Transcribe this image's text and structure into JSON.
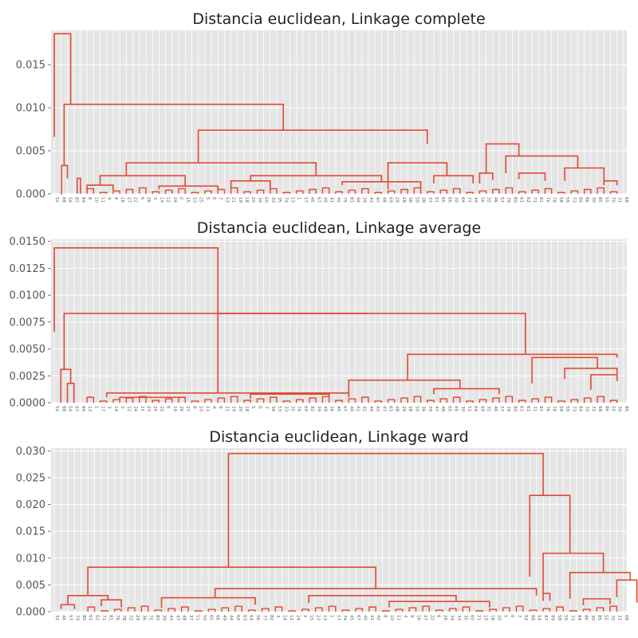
{
  "colors": {
    "background": "#e5e5e5",
    "grid": "#ffffff",
    "link": "#e24a33",
    "text": "#555555",
    "title": "#222222"
  },
  "chart_data": [
    {
      "type": "dendrogram",
      "title": "Distancia euclidean, Linkage complete",
      "xlabel": "",
      "ylabel": "",
      "ylim": [
        0,
        0.019
      ],
      "yticks": [
        0.0,
        0.005,
        0.01,
        0.015
      ],
      "ytick_labels": [
        "0.000",
        "0.005",
        "0.010",
        "0.015"
      ],
      "grid": true,
      "leaves": [
        "52",
        "88",
        "54",
        "87",
        "89",
        "8",
        "10",
        "11",
        "4",
        "9",
        "16",
        "27",
        "22",
        "6",
        "26",
        "3",
        "14",
        "12",
        "24",
        "2",
        "15",
        "23",
        "25",
        "5",
        "0",
        "7",
        "53",
        "21",
        "19",
        "18",
        "20",
        "34",
        "60",
        "33",
        "35",
        "74",
        "13",
        "1",
        "17",
        "45",
        "67",
        "40",
        "41",
        "42",
        "75",
        "83",
        "44",
        "39",
        "43",
        "47",
        "48",
        "69",
        "29",
        "28",
        "36",
        "50",
        "38",
        "37",
        "51",
        "65",
        "66",
        "30",
        "64",
        "77",
        "49",
        "56",
        "32",
        "46",
        "57",
        "79",
        "80",
        "61",
        "62",
        "71",
        "81",
        "76",
        "78",
        "58",
        "59",
        "73",
        "84",
        "86",
        "30",
        "85",
        "55",
        "70",
        "31",
        "68"
      ],
      "links": [
        {
          "x": [
            1,
            1,
            3,
            3
          ],
          "y": [
            0.0066,
            0.0186,
            0.0186,
            0.0104
          ]
        },
        {
          "x": [
            2,
            2,
            3.5,
            3.5
          ],
          "y": [
            0.0034,
            0.0104,
            0.0104,
            0.0073
          ]
        },
        {
          "x": [
            3,
            3,
            4,
            4
          ],
          "y": [
            0.0018,
            0.0034,
            0.0034,
            0.0018
          ]
        },
        {
          "x": [
            3.5,
            3.5,
            6.5,
            6.5
          ],
          "y": [
            0.0035,
            0.0073,
            0.0073,
            0.0058
          ]
        },
        {
          "x": [
            3.5,
            3.5,
            3.6,
            3.6
          ],
          "y": [
            0.002,
            0.0035,
            0.0035,
            0.0025
          ]
        },
        {
          "x": [
            6.5,
            6.5,
            7.2,
            7.2
          ],
          "y": [
            0.0025,
            0.0058,
            0.0058,
            0.0044
          ]
        },
        {
          "x": [
            7.2,
            7.2,
            8,
            8
          ],
          "y": [
            0.003,
            0.0044,
            0.0044,
            0.003
          ]
        },
        {
          "x": [
            3.6,
            3.6,
            4.6,
            4.6
          ],
          "y": [
            0.0012,
            0.0025,
            0.0025,
            0.002
          ]
        },
        {
          "x": [
            3.6,
            3.6,
            4.1,
            4.1
          ],
          "y": [
            0.0006,
            0.0012,
            0.0012,
            0.0008
          ]
        },
        {
          "x": [
            4.6,
            4.6,
            5.4,
            5.4
          ],
          "y": [
            0.0012,
            0.002,
            0.002,
            0.0012
          ]
        },
        {
          "x": [
            6.3,
            6.3,
            6.9,
            6.9
          ],
          "y": [
            0.0015,
            0.0025,
            0.0025,
            0.002
          ]
        },
        {
          "x": [
            7.5,
            7.5,
            8.5,
            8.5
          ],
          "y": [
            0.0012,
            0.003,
            0.003,
            0.0015
          ]
        },
        {
          "x": [
            5,
            5,
            5.3,
            5.3
          ],
          "y": [
            0.0003,
            0.001,
            0.001,
            0.0005
          ]
        },
        {
          "x": [
            5,
            5,
            5.3,
            5.3
          ],
          "y": [
            0.0003,
            0.0009,
            0.0009,
            0.0004
          ]
        }
      ]
    },
    {
      "type": "dendrogram",
      "title": "Distancia euclidean, Linkage average",
      "xlabel": "",
      "ylabel": "",
      "ylim": [
        0,
        0.0152
      ],
      "yticks": [
        0.0,
        0.0025,
        0.005,
        0.0075,
        0.01,
        0.0125,
        0.015
      ],
      "ytick_labels": [
        "0.0000",
        "0.0025",
        "0.0050",
        "0.0075",
        "0.0100",
        "0.0125",
        "0.0150"
      ],
      "grid": true,
      "leaves": [
        "52",
        "88",
        "54",
        "87",
        "89",
        "13",
        "1",
        "17",
        "3",
        "14",
        "2",
        "12",
        "24",
        "15",
        "23",
        "25",
        "22",
        "6",
        "16",
        "26",
        "27",
        "8",
        "10",
        "11",
        "4",
        "9",
        "21",
        "19",
        "20",
        "18",
        "5",
        "0",
        "7",
        "34",
        "53",
        "33",
        "35",
        "74",
        "60",
        "82",
        "39",
        "49",
        "56",
        "45",
        "67",
        "40",
        "41",
        "42",
        "44",
        "43",
        "47",
        "63",
        "48",
        "29",
        "28",
        "50",
        "36",
        "39",
        "47",
        "48",
        "65",
        "66",
        "30",
        "51",
        "64",
        "69",
        "32",
        "46",
        "57",
        "79",
        "80",
        "61",
        "62",
        "71",
        "81",
        "76",
        "78",
        "58",
        "59",
        "73",
        "84",
        "70",
        "31",
        "68",
        "86",
        "55",
        "30",
        "85"
      ],
      "links": []
    },
    {
      "type": "dendrogram",
      "title": "Distancia euclidean, Linkage ward",
      "xlabel": "",
      "ylabel": "",
      "ylim": [
        0,
        0.0305
      ],
      "yticks": [
        0.0,
        0.005,
        0.01,
        0.015,
        0.02,
        0.025,
        0.03
      ],
      "ytick_labels": [
        "0.000",
        "0.005",
        "0.010",
        "0.015",
        "0.020",
        "0.025",
        "0.030"
      ],
      "grid": true,
      "leaves": [
        "32",
        "46",
        "57",
        "79",
        "80",
        "61",
        "62",
        "71",
        "81",
        "76",
        "78",
        "72",
        "29",
        "36",
        "75",
        "83",
        "39",
        "43",
        "47",
        "48",
        "37",
        "51",
        "50",
        "65",
        "66",
        "49",
        "44",
        "69",
        "63",
        "64",
        "56",
        "77",
        "82",
        "3",
        "14",
        "12",
        "24",
        "2",
        "15",
        "23",
        "13",
        "1",
        "17",
        "74",
        "45",
        "67",
        "40",
        "41",
        "42",
        "8",
        "10",
        "11",
        "4",
        "9",
        "16",
        "27",
        "22",
        "6",
        "26",
        "34",
        "33",
        "35",
        "60",
        "21",
        "19",
        "18",
        "20",
        "5",
        "0",
        "7",
        "52",
        "88",
        "54",
        "87",
        "89",
        "58",
        "59",
        "73",
        "84",
        "86",
        "30",
        "85",
        "55",
        "70",
        "31",
        "68"
      ],
      "links": []
    }
  ]
}
